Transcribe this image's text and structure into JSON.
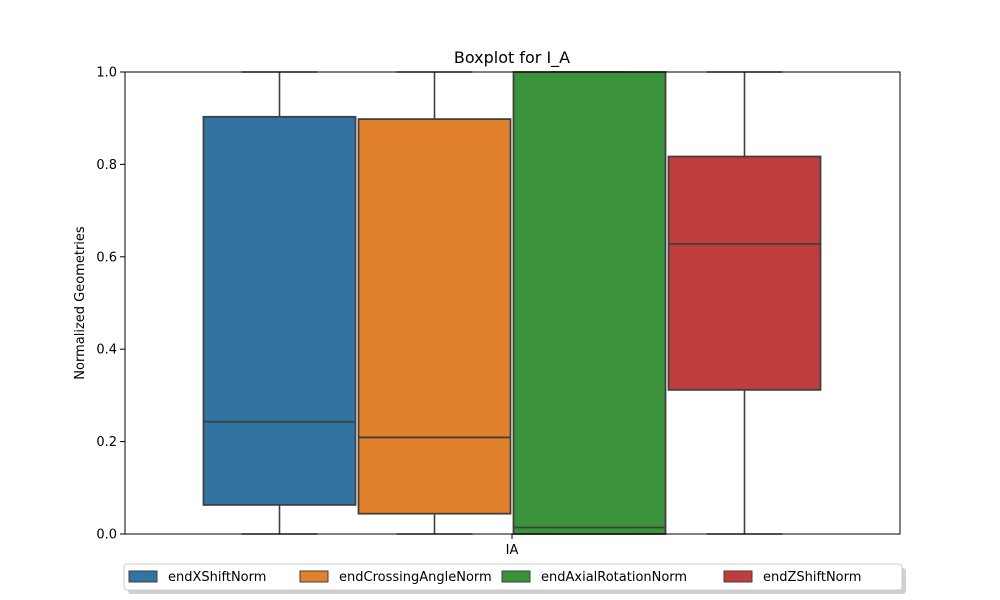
{
  "chart_data": {
    "type": "boxplot",
    "title": "Boxplot for I_A",
    "xlabel": "",
    "ylabel": "Normalized Geometries",
    "categories": [
      "IA"
    ],
    "ylim": [
      0,
      1.0
    ],
    "yticks": [
      "0.0",
      "0.2",
      "0.4",
      "0.6",
      "0.8",
      "1.0"
    ],
    "grid": false,
    "legend_position": "bottom",
    "series": [
      {
        "name": "endXShiftNorm",
        "color": "#3274a1",
        "whisker_low": 0.0,
        "q1": 0.063,
        "median": 0.243,
        "q3": 0.903,
        "whisker_high": 1.0
      },
      {
        "name": "endCrossingAngleNorm",
        "color": "#e1812c",
        "whisker_low": 0.0,
        "q1": 0.044,
        "median": 0.209,
        "q3": 0.898,
        "whisker_high": 1.0
      },
      {
        "name": "endAxialRotationNorm",
        "color": "#3a923a",
        "whisker_low": 0.0,
        "q1": 0.0,
        "median": 0.014,
        "q3": 1.0,
        "whisker_high": 1.0
      },
      {
        "name": "endZShiftNorm",
        "color": "#c03d3e",
        "whisker_low": 0.0,
        "q1": 0.312,
        "median": 0.628,
        "q3": 0.817,
        "whisker_high": 1.0
      }
    ]
  }
}
